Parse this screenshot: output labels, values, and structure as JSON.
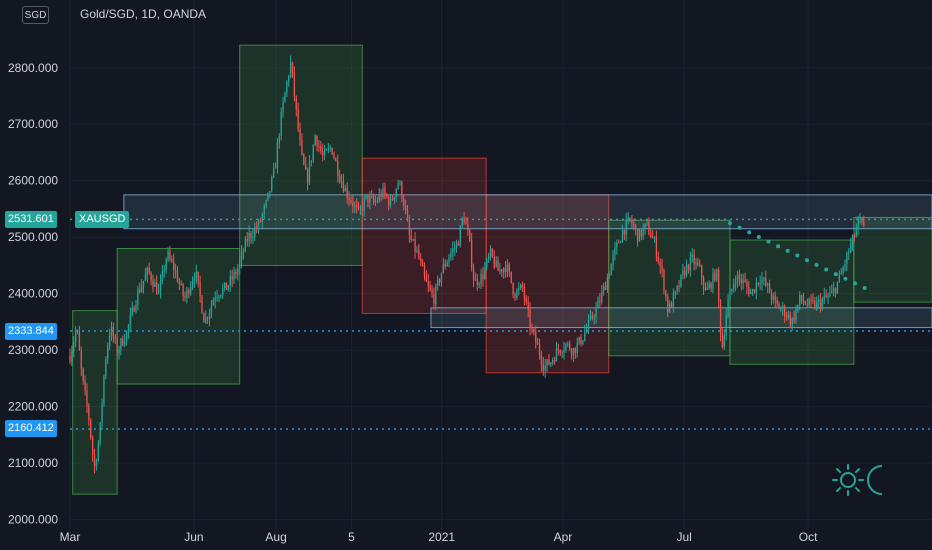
{
  "currency_badge": "SGD",
  "legend": {
    "title": "Gold/SGD, 1D, OANDA"
  },
  "price_tags": {
    "last": {
      "value": "2531.601",
      "symbol": "XAUSGD"
    },
    "level1": {
      "value": "2333.844"
    },
    "level2": {
      "value": "2160.412"
    }
  },
  "colors": {
    "background": "#131722",
    "up": "#26a69a",
    "down": "#ef5350",
    "last_tag": "#26a69a",
    "level_tag": "#2196f3",
    "level_line": "#2196f3",
    "zone_blue": "#90caf9",
    "zone_green": "#4caf50",
    "zone_red": "#f44336",
    "trend_dots": "#26a69a",
    "text": "#d1d4dc"
  },
  "icons": {
    "logo": "sun-moon-logo-icon"
  },
  "chart_data": {
    "type": "candlestick",
    "title": "Gold/SGD, 1D, OANDA",
    "y_ticks": [
      "2000.000",
      "2100.000",
      "2200.000",
      "2300.000",
      "2400.000",
      "2500.000",
      "2600.000",
      "2700.000",
      "2800.000"
    ],
    "ylim": [
      1955,
      2920
    ],
    "x_labels": [
      {
        "label": "Mar",
        "t": 0
      },
      {
        "label": "Jun",
        "t": 92
      },
      {
        "label": "Aug",
        "t": 153
      },
      {
        "label": "5",
        "t": 209
      },
      {
        "label": "2021",
        "t": 276
      },
      {
        "label": "Apr",
        "t": 366
      },
      {
        "label": "Jul",
        "t": 456
      },
      {
        "label": "Oct",
        "t": 548
      }
    ],
    "xlim": [
      0,
      640
    ],
    "horizontal_levels": [
      {
        "value": 2531.601,
        "style": "dotted",
        "name": "last"
      },
      {
        "value": 2333.844,
        "style": "dotted",
        "name": "level1"
      },
      {
        "value": 2160.412,
        "style": "dotted",
        "name": "level2"
      }
    ],
    "zones": [
      {
        "t0": 2,
        "t1": 35,
        "p0": 2045,
        "p1": 2370,
        "color": "green"
      },
      {
        "t0": 35,
        "t1": 126,
        "p0": 2240,
        "p1": 2480,
        "color": "green"
      },
      {
        "t0": 126,
        "t1": 217,
        "p0": 2450,
        "p1": 2840,
        "color": "green"
      },
      {
        "t0": 217,
        "t1": 309,
        "p0": 2365,
        "p1": 2640,
        "color": "red"
      },
      {
        "t0": 309,
        "t1": 400,
        "p0": 2260,
        "p1": 2575,
        "color": "red"
      },
      {
        "t0": 400,
        "t1": 490,
        "p0": 2290,
        "p1": 2530,
        "color": "green"
      },
      {
        "t0": 490,
        "t1": 582,
        "p0": 2275,
        "p1": 2495,
        "color": "green"
      },
      {
        "t0": 582,
        "t1": 640,
        "p0": 2385,
        "p1": 2535,
        "color": "green"
      },
      {
        "t0": 40,
        "t1": 640,
        "p0": 2515,
        "p1": 2575,
        "color": "blue"
      },
      {
        "t0": 268,
        "t1": 640,
        "p0": 2340,
        "p1": 2375,
        "color": "blue"
      }
    ],
    "trendline_dots": {
      "t0": 490,
      "p0": 2525,
      "t1": 590,
      "p1": 2410
    },
    "anchors": [
      [
        0,
        2290
      ],
      [
        5,
        2340
      ],
      [
        9,
        2250
      ],
      [
        14,
        2180
      ],
      [
        18,
        2090
      ],
      [
        22,
        2150
      ],
      [
        26,
        2280
      ],
      [
        30,
        2340
      ],
      [
        35,
        2300
      ],
      [
        42,
        2330
      ],
      [
        50,
        2400
      ],
      [
        58,
        2440
      ],
      [
        66,
        2400
      ],
      [
        72,
        2470
      ],
      [
        78,
        2440
      ],
      [
        85,
        2390
      ],
      [
        93,
        2440
      ],
      [
        100,
        2350
      ],
      [
        108,
        2400
      ],
      [
        116,
        2410
      ],
      [
        124,
        2440
      ],
      [
        132,
        2500
      ],
      [
        140,
        2520
      ],
      [
        146,
        2560
      ],
      [
        152,
        2620
      ],
      [
        156,
        2700
      ],
      [
        160,
        2760
      ],
      [
        164,
        2810
      ],
      [
        168,
        2720
      ],
      [
        172,
        2640
      ],
      [
        176,
        2600
      ],
      [
        182,
        2680
      ],
      [
        188,
        2640
      ],
      [
        194,
        2660
      ],
      [
        200,
        2610
      ],
      [
        205,
        2580
      ],
      [
        210,
        2560
      ],
      [
        214,
        2540
      ],
      [
        220,
        2570
      ],
      [
        226,
        2560
      ],
      [
        232,
        2580
      ],
      [
        238,
        2560
      ],
      [
        244,
        2600
      ],
      [
        248,
        2560
      ],
      [
        252,
        2500
      ],
      [
        258,
        2470
      ],
      [
        264,
        2420
      ],
      [
        270,
        2390
      ],
      [
        276,
        2440
      ],
      [
        282,
        2470
      ],
      [
        288,
        2490
      ],
      [
        292,
        2540
      ],
      [
        296,
        2500
      ],
      [
        300,
        2420
      ],
      [
        306,
        2430
      ],
      [
        312,
        2470
      ],
      [
        318,
        2440
      ],
      [
        324,
        2450
      ],
      [
        330,
        2400
      ],
      [
        336,
        2410
      ],
      [
        342,
        2340
      ],
      [
        348,
        2300
      ],
      [
        352,
        2270
      ],
      [
        357,
        2280
      ],
      [
        362,
        2300
      ],
      [
        368,
        2310
      ],
      [
        374,
        2300
      ],
      [
        380,
        2320
      ],
      [
        386,
        2350
      ],
      [
        392,
        2380
      ],
      [
        398,
        2420
      ],
      [
        404,
        2470
      ],
      [
        410,
        2510
      ],
      [
        416,
        2530
      ],
      [
        422,
        2500
      ],
      [
        428,
        2520
      ],
      [
        434,
        2490
      ],
      [
        440,
        2430
      ],
      [
        444,
        2370
      ],
      [
        450,
        2400
      ],
      [
        456,
        2440
      ],
      [
        462,
        2460
      ],
      [
        468,
        2440
      ],
      [
        472,
        2400
      ],
      [
        476,
        2420
      ],
      [
        480,
        2440
      ],
      [
        484,
        2300
      ],
      [
        488,
        2380
      ],
      [
        494,
        2430
      ],
      [
        500,
        2420
      ],
      [
        506,
        2400
      ],
      [
        512,
        2430
      ],
      [
        518,
        2410
      ],
      [
        524,
        2380
      ],
      [
        530,
        2370
      ],
      [
        536,
        2350
      ],
      [
        542,
        2390
      ],
      [
        548,
        2380
      ],
      [
        554,
        2380
      ],
      [
        560,
        2390
      ],
      [
        566,
        2400
      ],
      [
        572,
        2430
      ],
      [
        576,
        2460
      ],
      [
        582,
        2500
      ],
      [
        586,
        2530
      ],
      [
        590,
        2510
      ]
    ]
  }
}
